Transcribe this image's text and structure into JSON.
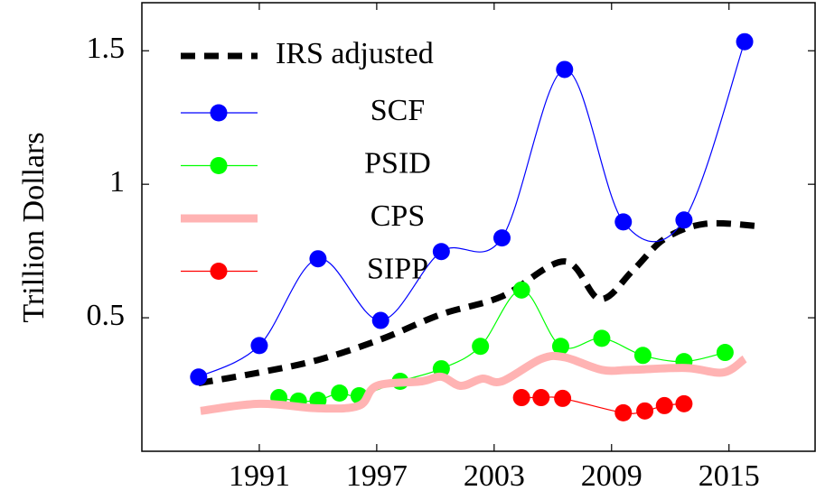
{
  "chart_data": {
    "type": "line",
    "ylabel": "Trillion Dollars",
    "xlim": [
      1985,
      2019.4
    ],
    "ylim": [
      0,
      1.68
    ],
    "xticks": [
      1991,
      1997,
      2003,
      2009,
      2015
    ],
    "yticks": [
      0.5,
      1,
      1.5
    ],
    "series": [
      {
        "name": "IRS adjusted",
        "color": "#000000",
        "style": "dashed",
        "x": [
          1987.9,
          1991,
          1994,
          1997.2,
          2000.3,
          2003.4,
          2006.6,
          2008.4,
          2010.1,
          2011.7,
          2013.8,
          2016.7
        ],
        "values": [
          0.255,
          0.295,
          0.342,
          0.419,
          0.513,
          0.58,
          0.711,
          0.57,
          0.678,
          0.795,
          0.852,
          0.842
        ]
      },
      {
        "name": "SCF",
        "color": "#0000ff",
        "style": "marker",
        "x": [
          1987.9,
          1991,
          1994,
          1997.2,
          2000.3,
          2003.4,
          2006.6,
          2009.6,
          2012.7,
          2015.8
        ],
        "values": [
          0.278,
          0.396,
          0.721,
          0.49,
          0.748,
          0.799,
          1.43,
          0.859,
          0.866,
          1.534
        ]
      },
      {
        "name": "PSID",
        "color": "#00ff00",
        "style": "marker",
        "x": [
          1992,
          1993,
          1994,
          1995.1,
          1996.1,
          1998.2,
          2000.3,
          2002.3,
          2004.4,
          2006.4,
          2008.5,
          2010.6,
          2012.7,
          2014.8
        ],
        "values": [
          0.201,
          0.188,
          0.191,
          0.218,
          0.208,
          0.262,
          0.309,
          0.393,
          0.604,
          0.393,
          0.423,
          0.359,
          0.336,
          0.37
        ]
      },
      {
        "name": "CPS",
        "color": "#ffb3b3",
        "style": "thick",
        "x": [
          1988,
          1991,
          1994,
          1996.1,
          1997,
          1999.3,
          2000.3,
          2001.3,
          2002.4,
          2003.4,
          2005.4,
          2006.6,
          2008.5,
          2010,
          2012.8,
          2014.7,
          2015.8
        ],
        "values": [
          0.151,
          0.178,
          0.161,
          0.171,
          0.245,
          0.262,
          0.279,
          0.245,
          0.272,
          0.262,
          0.346,
          0.352,
          0.305,
          0.305,
          0.312,
          0.295,
          0.346
        ]
      },
      {
        "name": "SIPP",
        "color": "#ff0000",
        "style": "marker",
        "x": [
          2004.4,
          2005.4,
          2006.5,
          2009.6,
          2010.7,
          2011.7,
          2012.7
        ],
        "values": [
          0.201,
          0.201,
          0.198,
          0.144,
          0.151,
          0.171,
          0.178
        ]
      }
    ]
  }
}
